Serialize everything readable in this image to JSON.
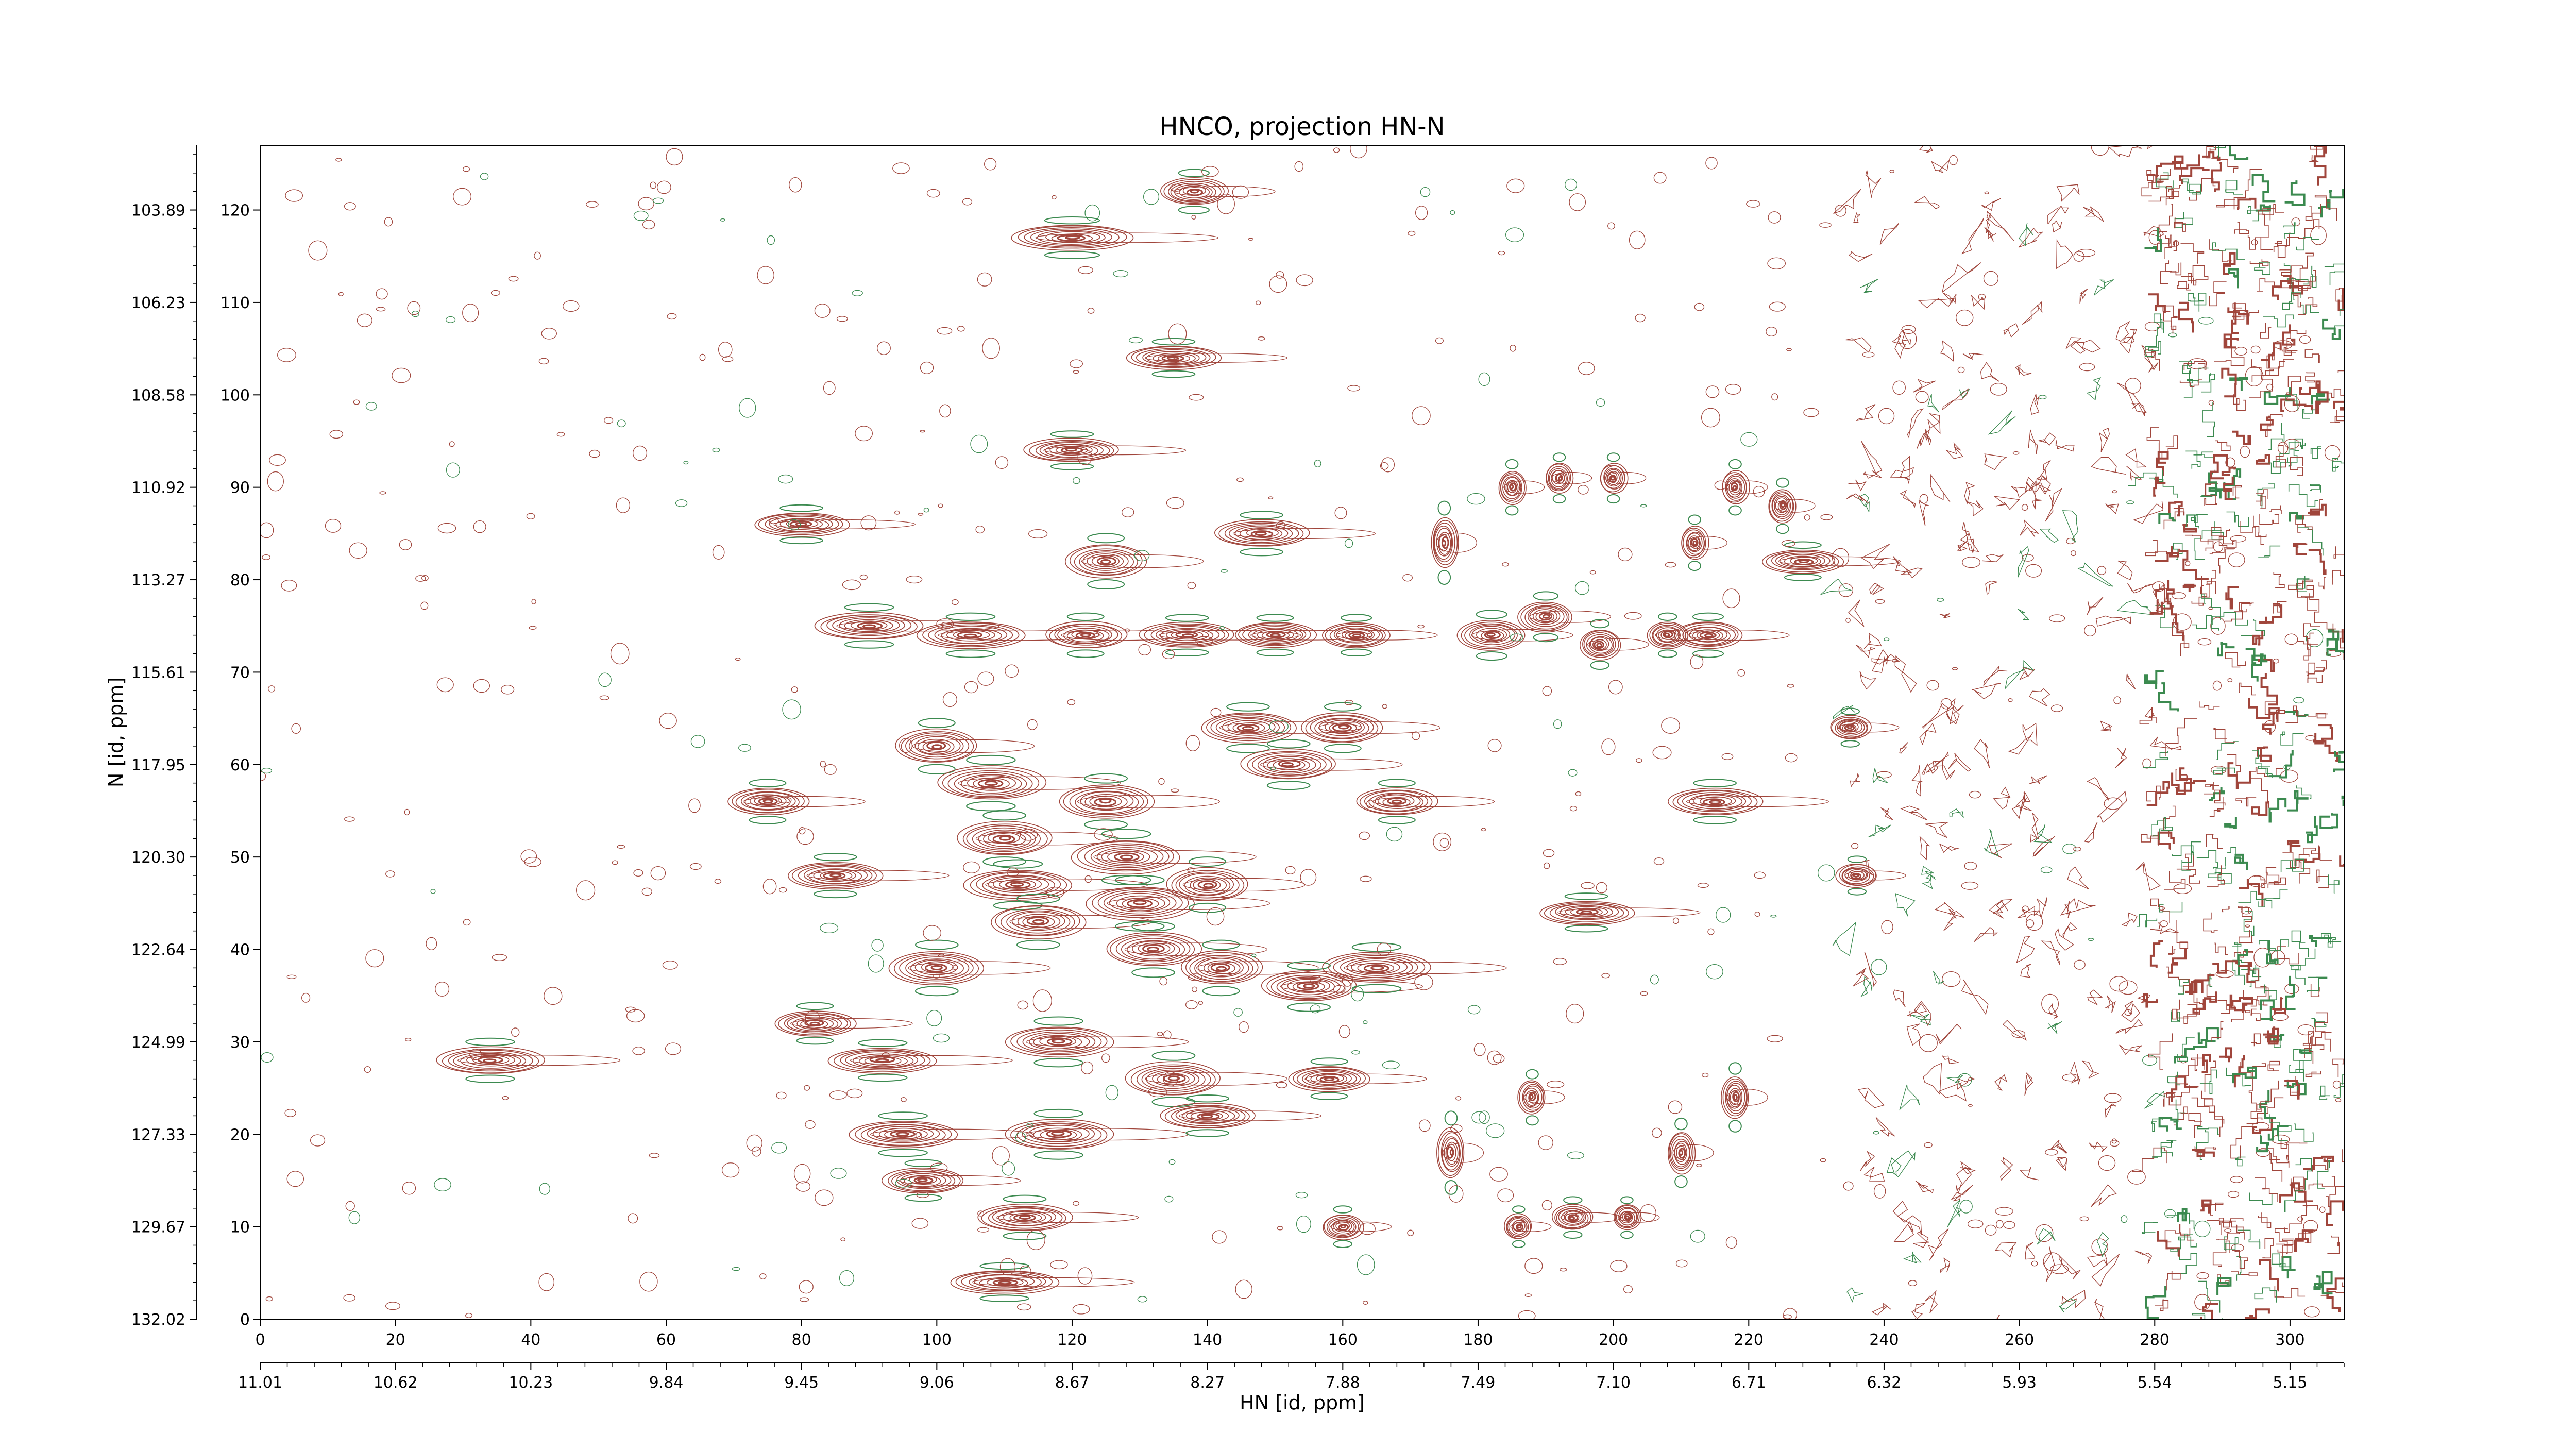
{
  "chart_data": {
    "type": "contour",
    "title": "HNCO, projection HN-N",
    "xlabel": "HN [id, ppm]",
    "ylabel": "N [id, ppm]",
    "x_index_ticks": [
      "0",
      "20",
      "40",
      "60",
      "80",
      "100",
      "120",
      "140",
      "160",
      "180",
      "200",
      "220",
      "240",
      "260",
      "280",
      "300"
    ],
    "x_index_lim": [
      0,
      308
    ],
    "x_ppm_ticks": [
      "11.01",
      "10.62",
      "10.23",
      "9.84",
      "9.45",
      "9.06",
      "8.67",
      "8.27",
      "7.88",
      "7.49",
      "7.10",
      "6.71",
      "6.32",
      "5.93",
      "5.54",
      "5.15"
    ],
    "y_index_ticks": [
      "0",
      "10",
      "20",
      "30",
      "40",
      "50",
      "60",
      "70",
      "80",
      "90",
      "100",
      "110",
      "120"
    ],
    "y_index_lim": [
      0,
      127
    ],
    "y_ppm_ticks": [
      "132.02",
      "129.67",
      "127.33",
      "124.99",
      "122.64",
      "120.30",
      "117.95",
      "115.61",
      "113.27",
      "110.92",
      "108.58",
      "106.23",
      "103.89"
    ],
    "colors": {
      "positive": "#a0453b",
      "negative": "#3b8a4f"
    },
    "peaks": [
      [
        34,
        28,
        8,
        1.6
      ],
      [
        80,
        86,
        7,
        1.4
      ],
      [
        75,
        56,
        6,
        1.6
      ],
      [
        90,
        75,
        8,
        1.6
      ],
      [
        85,
        48,
        7,
        1.6
      ],
      [
        82,
        32,
        6,
        1.5
      ],
      [
        92,
        28,
        8,
        1.5
      ],
      [
        95,
        20,
        8,
        1.6
      ],
      [
        98,
        15,
        6,
        1.5
      ],
      [
        100,
        62,
        6,
        2.0
      ],
      [
        100,
        38,
        7,
        2.0
      ],
      [
        105,
        74,
        8,
        1.6
      ],
      [
        108,
        58,
        8,
        2.0
      ],
      [
        110,
        52,
        7,
        2.0
      ],
      [
        112,
        47,
        8,
        1.8
      ],
      [
        115,
        43,
        7,
        2.0
      ],
      [
        113,
        11,
        7,
        1.6
      ],
      [
        110,
        4,
        8,
        1.4
      ],
      [
        118,
        30,
        8,
        1.8
      ],
      [
        118,
        20,
        8,
        1.8
      ],
      [
        120,
        117,
        9,
        1.5
      ],
      [
        120,
        94,
        7,
        1.4
      ],
      [
        122,
        74,
        6,
        1.6
      ],
      [
        125,
        82,
        6,
        2.0
      ],
      [
        125,
        56,
        7,
        2.0
      ],
      [
        128,
        50,
        8,
        2.0
      ],
      [
        130,
        45,
        8,
        2.0
      ],
      [
        132,
        40,
        7,
        2.0
      ],
      [
        135,
        26,
        7,
        2.0
      ],
      [
        135,
        104,
        7,
        1.4
      ],
      [
        138,
        122,
        5,
        1.6
      ],
      [
        137,
        74,
        7,
        1.5
      ],
      [
        140,
        47,
        6,
        2.0
      ],
      [
        142,
        38,
        6,
        2.0
      ],
      [
        140,
        22,
        7,
        1.5
      ],
      [
        148,
        85,
        7,
        1.6
      ],
      [
        146,
        64,
        7,
        1.8
      ],
      [
        150,
        74,
        6,
        1.5
      ],
      [
        152,
        60,
        7,
        1.8
      ],
      [
        155,
        36,
        7,
        1.8
      ],
      [
        158,
        26,
        6,
        1.5
      ],
      [
        160,
        64,
        6,
        1.8
      ],
      [
        162,
        74,
        5,
        1.5
      ],
      [
        165,
        38,
        8,
        1.8
      ],
      [
        168,
        56,
        6,
        1.6
      ],
      [
        175,
        84,
        2,
        3.0
      ],
      [
        182,
        74,
        5,
        1.8
      ],
      [
        185,
        90,
        2,
        2.0
      ],
      [
        190,
        76,
        4,
        1.8
      ],
      [
        192,
        91,
        2,
        1.8
      ],
      [
        196,
        44,
        7,
        1.4
      ],
      [
        198,
        73,
        3,
        1.8
      ],
      [
        200,
        91,
        2,
        1.8
      ],
      [
        208,
        74,
        3,
        1.6
      ],
      [
        212,
        84,
        2,
        2.0
      ],
      [
        214,
        74,
        5,
        1.6
      ],
      [
        215,
        56,
        7,
        1.6
      ],
      [
        218,
        90,
        2,
        2.0
      ],
      [
        225,
        88,
        2,
        2.0
      ],
      [
        228,
        82,
        6,
        1.4
      ],
      [
        218,
        24,
        2,
        2.5
      ],
      [
        210,
        18,
        2,
        2.5
      ],
      [
        176,
        18,
        2,
        3.0
      ],
      [
        188,
        24,
        2,
        2.0
      ],
      [
        186,
        10,
        2,
        1.5
      ],
      [
        194,
        11,
        3,
        1.5
      ],
      [
        202,
        11,
        2,
        1.5
      ],
      [
        160,
        10,
        3,
        1.5
      ],
      [
        235,
        64,
        3,
        1.4
      ],
      [
        236,
        48,
        3,
        1.4
      ]
    ]
  }
}
